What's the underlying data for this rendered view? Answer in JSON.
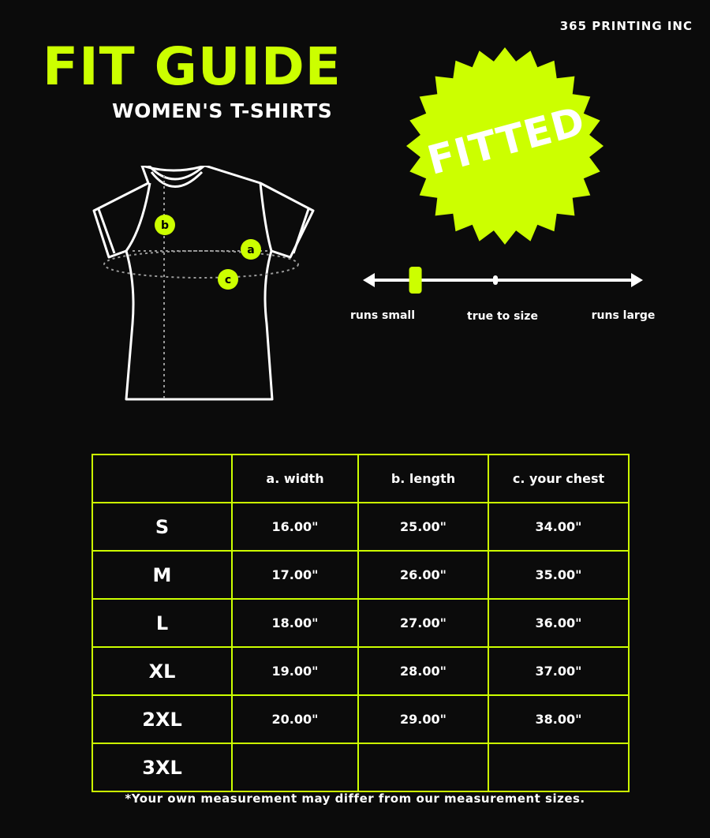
{
  "brand": "365 PRINTING INC",
  "title": "FIT GUIDE",
  "subtitle": "WOMEN'S T-SHIRTS",
  "badge": "FITTED",
  "accent_color": "#ccff00",
  "diagram": {
    "markers": [
      "a",
      "b",
      "c"
    ]
  },
  "fit_scale": {
    "labels": [
      "runs small",
      "true to size",
      "runs large"
    ],
    "position": 0.18
  },
  "table": {
    "headers": [
      "",
      "a. width",
      "b. length",
      "c. your chest"
    ],
    "rows": [
      [
        "S",
        "16.00\"",
        "25.00\"",
        "34.00\""
      ],
      [
        "M",
        "17.00\"",
        "26.00\"",
        "35.00\""
      ],
      [
        "L",
        "18.00\"",
        "27.00\"",
        "36.00\""
      ],
      [
        "XL",
        "19.00\"",
        "28.00\"",
        "37.00\""
      ],
      [
        "2XL",
        "20.00\"",
        "29.00\"",
        "38.00\""
      ],
      [
        "3XL",
        "",
        "",
        ""
      ]
    ]
  },
  "note": "*Your own measurement may differ from our measurement sizes."
}
